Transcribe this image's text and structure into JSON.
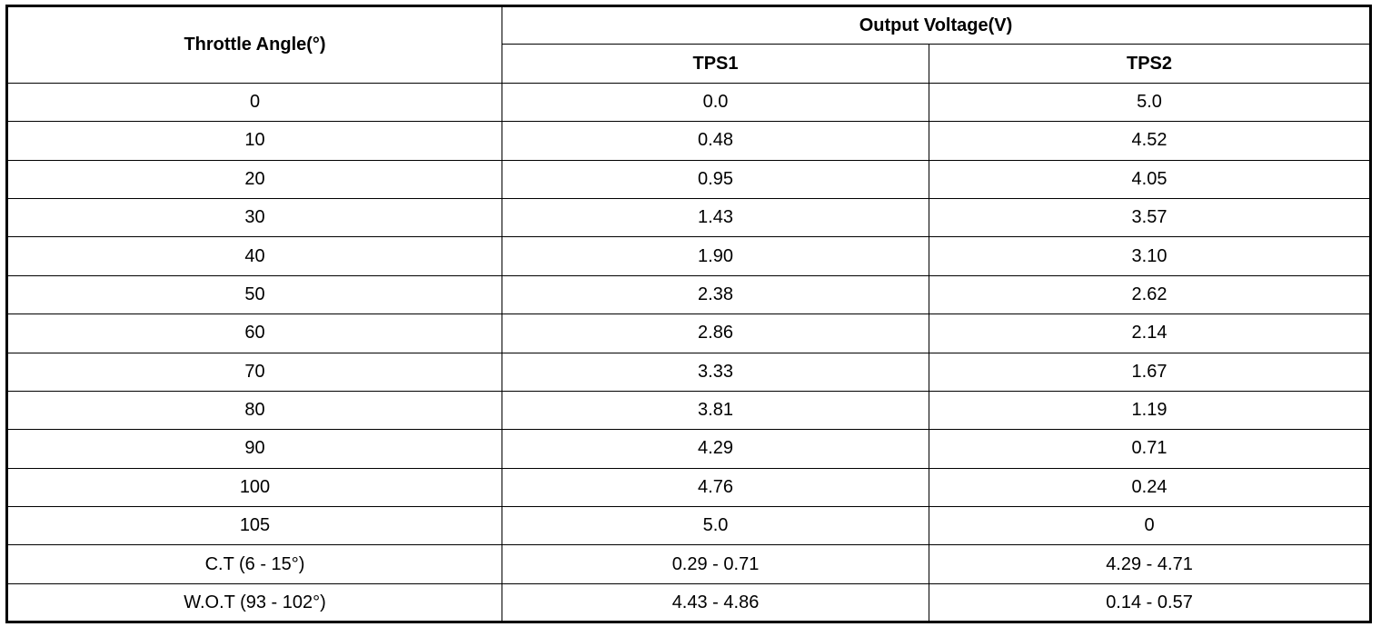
{
  "table": {
    "header": {
      "angle": "Throttle Angle(°)",
      "output": "Output Voltage(V)",
      "tps1": "TPS1",
      "tps2": "TPS2"
    },
    "rows": [
      [
        "0",
        "0.0",
        "5.0"
      ],
      [
        "10",
        "0.48",
        "4.52"
      ],
      [
        "20",
        "0.95",
        "4.05"
      ],
      [
        "30",
        "1.43",
        "3.57"
      ],
      [
        "40",
        "1.90",
        "3.10"
      ],
      [
        "50",
        "2.38",
        "2.62"
      ],
      [
        "60",
        "2.86",
        "2.14"
      ],
      [
        "70",
        "3.33",
        "1.67"
      ],
      [
        "80",
        "3.81",
        "1.19"
      ],
      [
        "90",
        "4.29",
        "0.71"
      ],
      [
        "100",
        "4.76",
        "0.24"
      ],
      [
        "105",
        "5.0",
        "0"
      ],
      [
        "C.T (6 - 15°)",
        "0.29 - 0.71",
        "4.29 - 4.71"
      ],
      [
        "W.O.T (93 - 102°)",
        "4.43 - 4.86",
        "0.14 - 0.57"
      ]
    ]
  }
}
